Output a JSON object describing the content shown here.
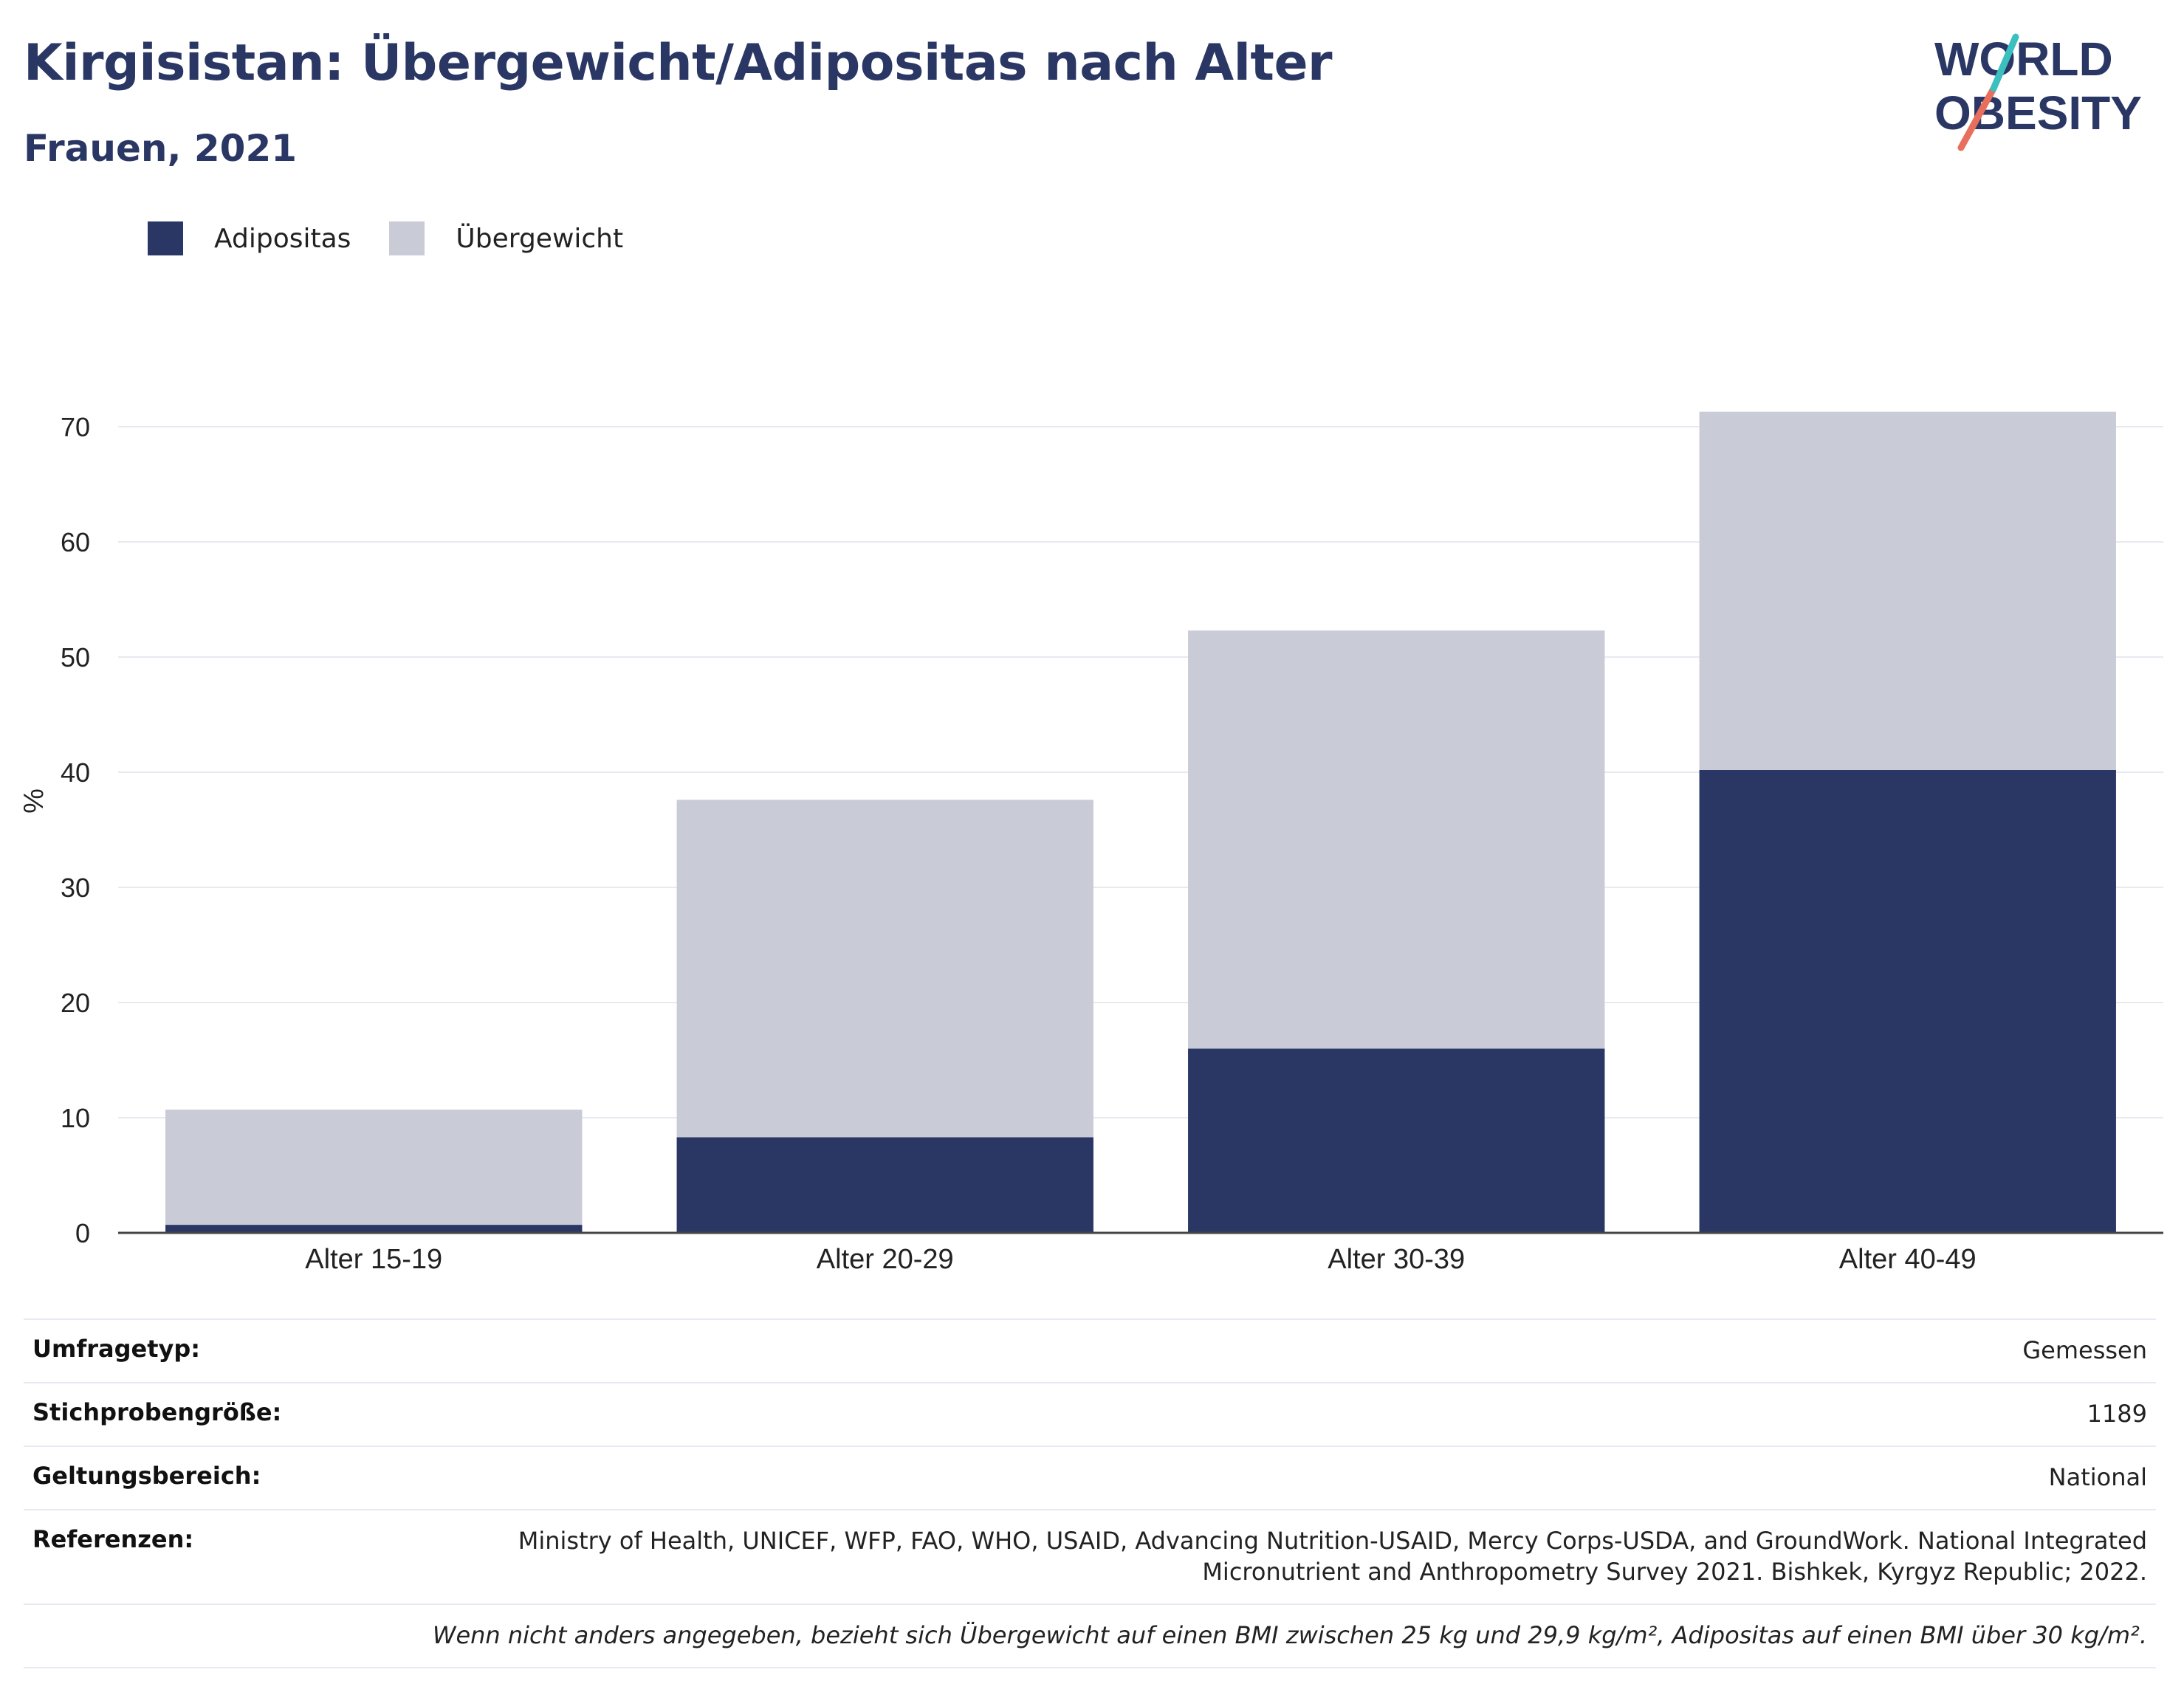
{
  "header": {
    "title": "Kirgisistan: Übergewicht/Adipositas nach Alter",
    "subtitle": "Frauen, 2021"
  },
  "logo": {
    "line1": "WORLD",
    "line2": "OBESITY",
    "colors": [
      "#2a3764",
      "#e86f5b",
      "#3bbfbf"
    ]
  },
  "legend": [
    {
      "label": "Adipositas",
      "color": "#2a3764"
    },
    {
      "label": "Übergewicht",
      "color": "#c9cbd7"
    }
  ],
  "chart_data": {
    "type": "bar",
    "stacked": true,
    "categories": [
      "Alter 15-19",
      "Alter 20-29",
      "Alter 30-39",
      "Alter 40-49"
    ],
    "series": [
      {
        "name": "Adipositas",
        "color": "#2a3764",
        "values": [
          0.7,
          8.3,
          16.0,
          40.2
        ]
      },
      {
        "name": "Übergewicht",
        "color": "#c9cbd7",
        "values": [
          10.0,
          29.3,
          36.3,
          31.1
        ]
      }
    ],
    "ylabel": "%",
    "ylim": [
      0,
      75
    ],
    "yticks": [
      0,
      10,
      20,
      30,
      40,
      50,
      60,
      70
    ],
    "grid": true
  },
  "info": {
    "rows": [
      {
        "label": "Umfragetyp:",
        "value": "Gemessen"
      },
      {
        "label": "Stichprobengröße:",
        "value": "1189"
      },
      {
        "label": "Geltungsbereich:",
        "value": "National"
      },
      {
        "label": "Referenzen:",
        "value": "Ministry of Health, UNICEF, WFP, FAO, WHO, USAID, Advancing Nutrition-USAID, Mercy Corps-USDA, and GroundWork. National Integrated Micronutrient and Anthropometry Survey 2021. Bishkek, Kyrgyz Republic; 2022."
      }
    ],
    "note": "Wenn nicht anders angegeben, bezieht sich Übergewicht auf einen BMI zwischen 25 kg und 29,9 kg/m², Adipositas auf einen BMI über 30 kg/m²."
  }
}
